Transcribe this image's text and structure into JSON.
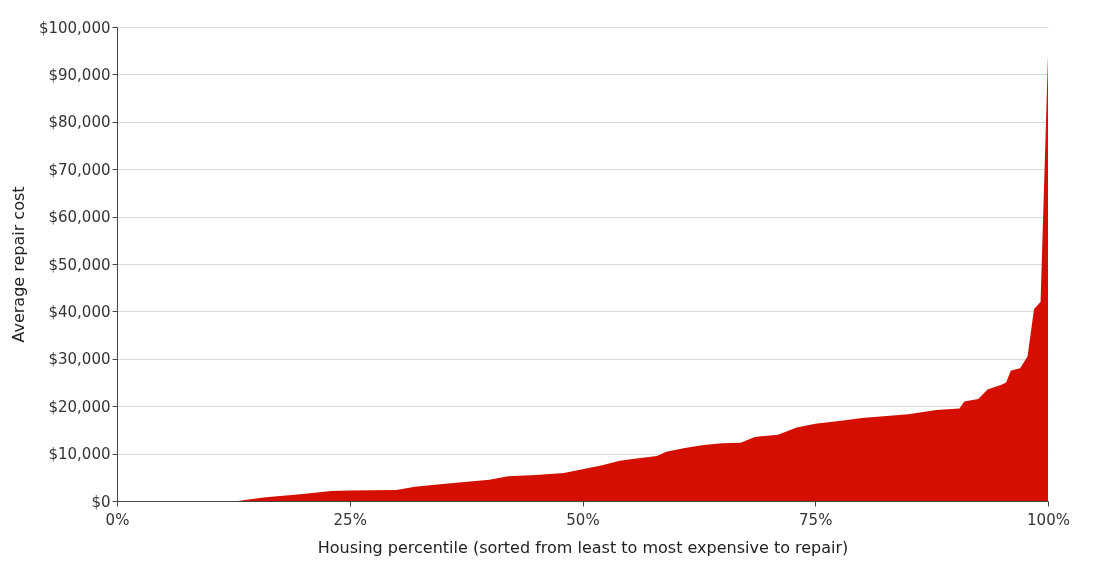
{
  "chart_data": {
    "type": "area",
    "xlabel": "Housing percentile (sorted from least to most expensive to repair)",
    "ylabel": "Average repair cost",
    "x": [
      0,
      13,
      16,
      20,
      23,
      25,
      30,
      32,
      35,
      40,
      42,
      45,
      48,
      50,
      52,
      54,
      56,
      58,
      59,
      61,
      63,
      65,
      67,
      68.5,
      71,
      73,
      75,
      78,
      80,
      85,
      88,
      90.5,
      91,
      92.5,
      93.5,
      95,
      95.5,
      96,
      97,
      97.8,
      98.5,
      99.2,
      100
    ],
    "series": [
      {
        "color": "#d40f00",
        "values": [
          0,
          0,
          800,
          1500,
          2100,
          2200,
          2300,
          3000,
          3600,
          4500,
          5200,
          5500,
          5900,
          6700,
          7500,
          8500,
          9000,
          9500,
          10400,
          11200,
          11800,
          12200,
          12300,
          13500,
          14000,
          15500,
          16300,
          17000,
          17500,
          18300,
          19200,
          19500,
          21000,
          21500,
          23500,
          24500,
          25000,
          27500,
          28000,
          30500,
          40500,
          42000,
          94000
        ]
      }
    ],
    "xlim": [
      0,
      100
    ],
    "xticks": [
      {
        "value": 0,
        "label": "0%"
      },
      {
        "value": 25,
        "label": "25%"
      },
      {
        "value": 50,
        "label": "50%"
      },
      {
        "value": 75,
        "label": "75%"
      },
      {
        "value": 100,
        "label": "100%"
      }
    ],
    "ylim": [
      0,
      100000
    ],
    "yticks": [
      {
        "value": 0,
        "label": "$0"
      },
      {
        "value": 10000,
        "label": "$10,000"
      },
      {
        "value": 20000,
        "label": "$20,000"
      },
      {
        "value": 30000,
        "label": "$30,000"
      },
      {
        "value": 40000,
        "label": "$40,000"
      },
      {
        "value": 50000,
        "label": "$50,000"
      },
      {
        "value": 60000,
        "label": "$60,000"
      },
      {
        "value": 70000,
        "label": "$70,000"
      },
      {
        "value": 80000,
        "label": "$80,000"
      },
      {
        "value": 90000,
        "label": "$90,000"
      },
      {
        "value": 100000,
        "label": "$100,000"
      }
    ],
    "grid": "y"
  }
}
